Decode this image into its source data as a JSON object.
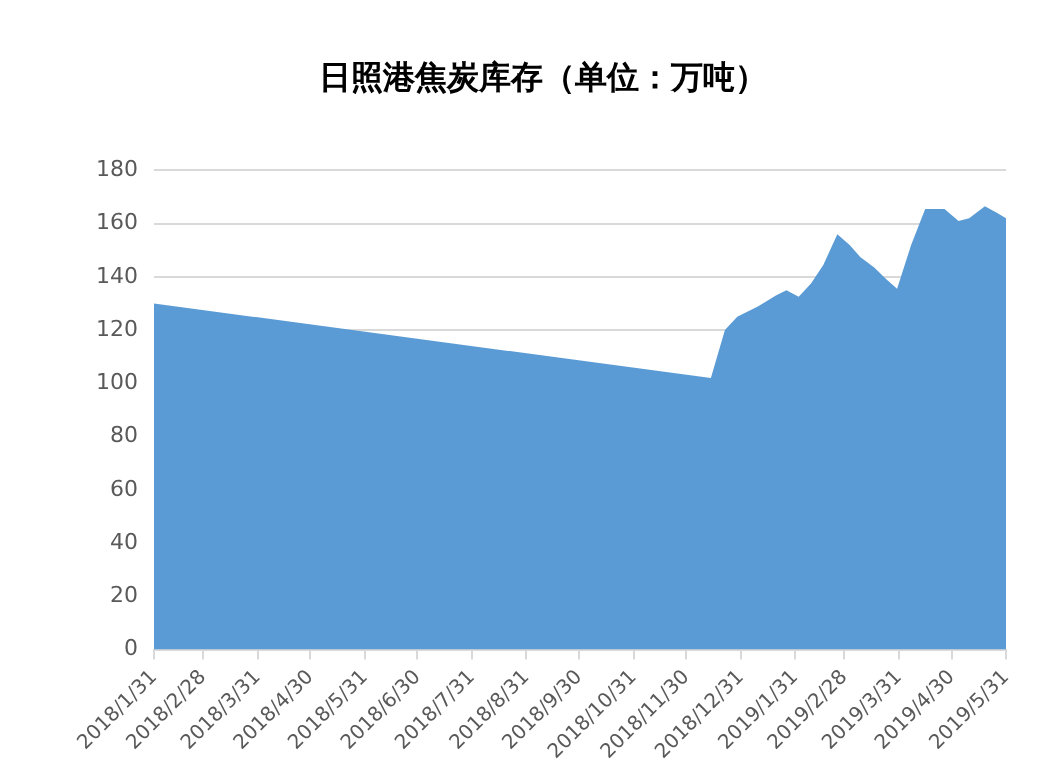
{
  "chart_data": {
    "type": "area",
    "title": "日照港焦炭库存（单位：万吨）",
    "x": [
      "2018-01-31",
      "2018-12-14",
      "2018-12-22",
      "2018-12-29",
      "2019-01-10",
      "2019-01-20",
      "2019-01-26",
      "2019-02-02",
      "2019-02-09",
      "2019-02-16",
      "2019-02-24",
      "2019-03-03",
      "2019-03-09",
      "2019-03-17",
      "2019-03-24",
      "2019-03-30",
      "2019-04-07",
      "2019-04-15",
      "2019-04-26",
      "2019-05-04",
      "2019-05-10",
      "2019-05-19",
      "2019-05-26",
      "2019-05-31"
    ],
    "series": [
      {
        "color": "#5b9bd5",
        "values": [
          130,
          102,
          120,
          125,
          129,
          133,
          135,
          132.5,
          137.5,
          144.5,
          156,
          152,
          147.5,
          143.5,
          139,
          135.5,
          152,
          165.5,
          165.5,
          161,
          162,
          166.5,
          164,
          162
        ]
      }
    ],
    "xlim": [
      "2018-01-31",
      "2019-05-31"
    ],
    "xticks": [
      {
        "value": "2018-01-31",
        "label": "2018/1/31"
      },
      {
        "value": "2018-02-28",
        "label": "2018/2/28"
      },
      {
        "value": "2018-03-31",
        "label": "2018/3/31"
      },
      {
        "value": "2018-04-30",
        "label": "2018/4/30"
      },
      {
        "value": "2018-05-31",
        "label": "2018/5/31"
      },
      {
        "value": "2018-06-30",
        "label": "2018/6/30"
      },
      {
        "value": "2018-07-31",
        "label": "2018/7/31"
      },
      {
        "value": "2018-08-31",
        "label": "2018/8/31"
      },
      {
        "value": "2018-09-30",
        "label": "2018/9/30"
      },
      {
        "value": "2018-10-31",
        "label": "2018/10/31"
      },
      {
        "value": "2018-11-30",
        "label": "2018/11/30"
      },
      {
        "value": "2018-12-31",
        "label": "2018/12/31"
      },
      {
        "value": "2019-01-31",
        "label": "2019/1/31"
      },
      {
        "value": "2019-02-28",
        "label": "2019/2/28"
      },
      {
        "value": "2019-03-31",
        "label": "2019/3/31"
      },
      {
        "value": "2019-04-30",
        "label": "2019/4/30"
      },
      {
        "value": "2019-05-31",
        "label": "2019/5/31"
      }
    ],
    "ylim": [
      0,
      180
    ],
    "yticks": [
      0,
      20,
      40,
      60,
      80,
      100,
      120,
      140,
      160,
      180
    ],
    "grid": "y",
    "legend": false
  }
}
